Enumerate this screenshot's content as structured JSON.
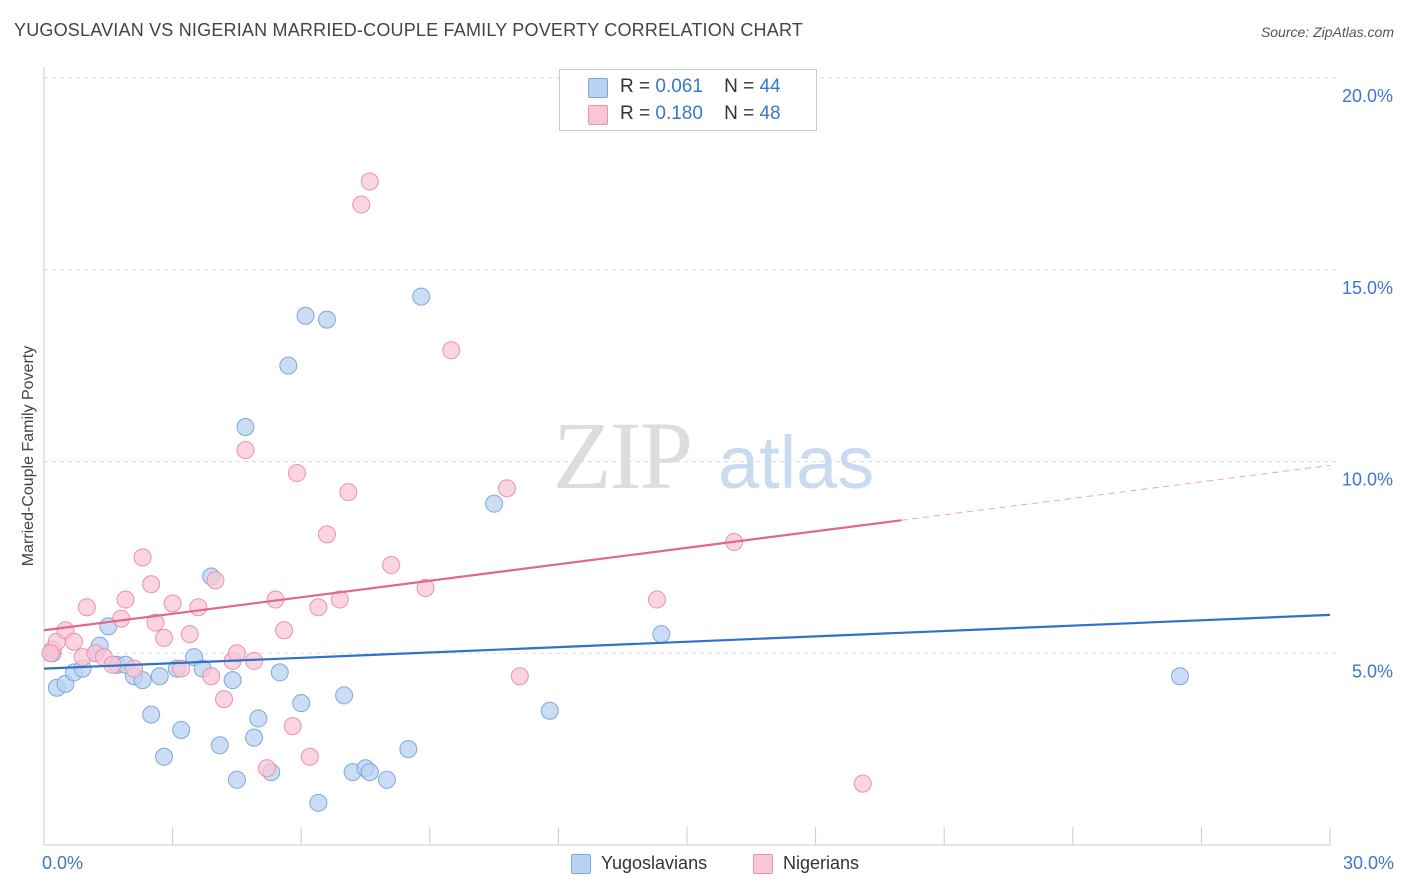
{
  "header": {
    "title": "YUGOSLAVIAN VS NIGERIAN MARRIED-COUPLE FAMILY POVERTY CORRELATION CHART",
    "source": "Source: ZipAtlas.com"
  },
  "watermark": {
    "zip": "ZIP",
    "atlas": "atlas"
  },
  "legend_top": [
    {
      "r_label": "R =",
      "r_value": "0.061",
      "n_label": "N =",
      "n_value": "44"
    },
    {
      "r_label": "R =",
      "r_value": "0.180",
      "n_label": "N =",
      "n_value": "48"
    }
  ],
  "legend_bottom": [
    "Yugoslavians",
    "Nigerians"
  ],
  "colors": {
    "blue_fill": "#b9d2f2",
    "blue_stroke": "#7ea8dc",
    "blue_line": "#2f72c8",
    "pink_fill": "#f8c6d6",
    "pink_stroke": "#e993b0",
    "pink_line": "#e06890",
    "tick_text": "#3a78c9",
    "grid": "#dddddd"
  },
  "chart_data": {
    "type": "scatter",
    "title": "YUGOSLAVIAN VS NIGERIAN MARRIED-COUPLE FAMILY POVERTY CORRELATION CHART",
    "xlabel": "",
    "ylabel": "Married-Couple Family Poverty",
    "xlim": [
      0,
      30
    ],
    "ylim": [
      0,
      20
    ],
    "x_tick_labels": [
      "0.0%",
      "30.0%"
    ],
    "y_ticks": [
      5,
      10,
      15,
      20
    ],
    "y_tick_labels": [
      "5.0%",
      "10.0%",
      "15.0%",
      "20.0%"
    ],
    "grid": true,
    "series": [
      {
        "name": "Yugoslavians",
        "r": 0.061,
        "n": 44,
        "trend": {
          "x0": 0,
          "y0": 4.6,
          "x1": 30,
          "y1": 6.0,
          "dashed_from": null
        },
        "points": [
          [
            0.2,
            5.0
          ],
          [
            0.3,
            4.1
          ],
          [
            0.5,
            4.2
          ],
          [
            0.7,
            4.5
          ],
          [
            0.9,
            4.6
          ],
          [
            1.2,
            5.0
          ],
          [
            1.3,
            5.2
          ],
          [
            1.5,
            5.7
          ],
          [
            1.7,
            4.7
          ],
          [
            1.9,
            4.7
          ],
          [
            2.1,
            4.4
          ],
          [
            2.3,
            4.3
          ],
          [
            2.5,
            3.4
          ],
          [
            2.7,
            4.4
          ],
          [
            2.8,
            2.3
          ],
          [
            3.1,
            4.6
          ],
          [
            3.2,
            3.0
          ],
          [
            3.5,
            4.9
          ],
          [
            3.7,
            4.6
          ],
          [
            3.9,
            7.0
          ],
          [
            4.1,
            2.6
          ],
          [
            4.4,
            4.3
          ],
          [
            4.5,
            1.7
          ],
          [
            4.7,
            10.9
          ],
          [
            4.9,
            2.8
          ],
          [
            5.0,
            3.3
          ],
          [
            5.3,
            1.9
          ],
          [
            5.5,
            4.5
          ],
          [
            5.7,
            12.5
          ],
          [
            6.0,
            3.7
          ],
          [
            6.1,
            13.8
          ],
          [
            6.4,
            1.1
          ],
          [
            6.6,
            13.7
          ],
          [
            7.0,
            3.9
          ],
          [
            7.2,
            1.9
          ],
          [
            7.5,
            2.0
          ],
          [
            7.6,
            1.9
          ],
          [
            8.0,
            1.7
          ],
          [
            8.5,
            2.5
          ],
          [
            8.8,
            14.3
          ],
          [
            10.5,
            8.9
          ],
          [
            11.8,
            3.5
          ],
          [
            14.4,
            5.5
          ],
          [
            26.5,
            4.4
          ]
        ]
      },
      {
        "name": "Nigerians",
        "r": 0.18,
        "n": 48,
        "trend": {
          "x0": 0,
          "y0": 5.6,
          "x1": 30,
          "y1": 9.9,
          "dashed_from": 20
        },
        "points": [
          [
            0.2,
            5.1
          ],
          [
            0.3,
            5.3
          ],
          [
            0.5,
            5.6
          ],
          [
            0.7,
            5.3
          ],
          [
            0.9,
            4.9
          ],
          [
            1.0,
            6.2
          ],
          [
            1.2,
            5.0
          ],
          [
            1.4,
            4.9
          ],
          [
            1.6,
            4.7
          ],
          [
            1.8,
            5.9
          ],
          [
            1.9,
            6.4
          ],
          [
            2.1,
            4.6
          ],
          [
            2.3,
            7.5
          ],
          [
            2.5,
            6.8
          ],
          [
            2.6,
            5.8
          ],
          [
            2.8,
            5.4
          ],
          [
            3.0,
            6.3
          ],
          [
            3.2,
            4.6
          ],
          [
            3.4,
            5.5
          ],
          [
            3.6,
            6.2
          ],
          [
            3.9,
            4.4
          ],
          [
            4.0,
            6.9
          ],
          [
            4.2,
            3.8
          ],
          [
            4.4,
            4.8
          ],
          [
            4.5,
            5.0
          ],
          [
            4.7,
            10.3
          ],
          [
            4.9,
            4.8
          ],
          [
            5.2,
            2.0
          ],
          [
            5.4,
            6.4
          ],
          [
            5.6,
            5.6
          ],
          [
            5.8,
            3.1
          ],
          [
            5.9,
            9.7
          ],
          [
            6.2,
            2.3
          ],
          [
            6.4,
            6.2
          ],
          [
            6.6,
            8.1
          ],
          [
            6.9,
            6.4
          ],
          [
            7.1,
            9.2
          ],
          [
            7.4,
            16.7
          ],
          [
            7.6,
            17.3
          ],
          [
            8.1,
            7.3
          ],
          [
            8.9,
            6.7
          ],
          [
            9.5,
            12.9
          ],
          [
            10.8,
            9.3
          ],
          [
            11.1,
            4.4
          ],
          [
            14.3,
            6.4
          ],
          [
            16.1,
            7.9
          ],
          [
            19.1,
            1.6
          ],
          [
            0.15,
            5.0
          ]
        ]
      }
    ]
  }
}
